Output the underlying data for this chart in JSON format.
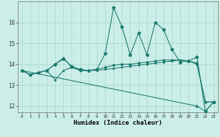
{
  "xlabel": "Humidex (Indice chaleur)",
  "background_color": "#cceee8",
  "grid_color": "#aad8d0",
  "line_color": "#1a7a6e",
  "xlim": [
    -0.5,
    23.5
  ],
  "ylim": [
    11.7,
    17.0
  ],
  "xticks": [
    0,
    1,
    2,
    3,
    4,
    5,
    6,
    7,
    8,
    9,
    10,
    11,
    12,
    13,
    14,
    15,
    16,
    17,
    18,
    19,
    20,
    21,
    22,
    23
  ],
  "yticks": [
    12,
    13,
    14,
    15,
    16
  ],
  "line1_x": [
    0,
    1,
    2,
    3,
    4,
    5,
    6,
    7,
    8,
    9,
    10,
    11,
    12,
    13,
    14,
    15,
    16,
    17,
    18,
    19,
    20,
    21,
    22,
    23
  ],
  "line1_y": [
    13.7,
    13.5,
    13.6,
    13.7,
    14.0,
    14.25,
    13.9,
    13.75,
    13.7,
    13.75,
    14.5,
    16.7,
    15.8,
    14.45,
    15.5,
    14.45,
    16.0,
    15.65,
    14.7,
    14.1,
    14.15,
    14.35,
    11.75,
    12.2
  ],
  "line2_x": [
    0,
    1,
    2,
    3,
    4,
    5,
    6,
    7,
    8,
    9,
    10,
    11,
    12,
    13,
    14,
    15,
    16,
    17,
    18,
    19,
    20,
    21,
    22,
    23
  ],
  "line2_y": [
    13.7,
    13.5,
    13.6,
    13.7,
    13.25,
    13.7,
    13.85,
    13.7,
    13.7,
    13.7,
    13.75,
    13.8,
    13.85,
    13.9,
    13.95,
    14.0,
    14.05,
    14.1,
    14.15,
    14.2,
    14.15,
    14.0,
    12.2,
    12.2
  ],
  "line3_x": [
    0,
    1,
    2,
    3,
    4,
    5,
    6,
    7,
    8,
    9,
    10,
    11,
    12,
    13,
    14,
    15,
    16,
    17,
    18,
    19,
    20,
    21,
    22,
    23
  ],
  "line3_y": [
    13.7,
    13.5,
    13.6,
    13.7,
    14.0,
    14.3,
    13.85,
    13.7,
    13.7,
    13.75,
    13.85,
    13.95,
    14.0,
    14.0,
    14.05,
    14.1,
    14.15,
    14.2,
    14.2,
    14.2,
    14.15,
    14.05,
    12.2,
    12.2
  ],
  "line4_x": [
    0,
    21,
    22,
    23
  ],
  "line4_y": [
    13.7,
    12.0,
    11.75,
    12.2
  ],
  "linewidth": 0.8,
  "marker_size": 2.0
}
